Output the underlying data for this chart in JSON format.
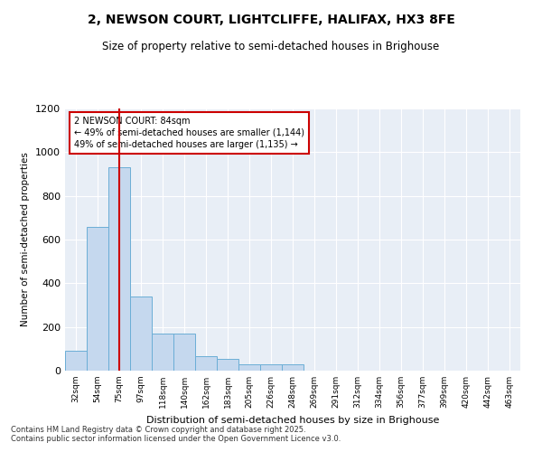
{
  "title_line1": "2, NEWSON COURT, LIGHTCLIFFE, HALIFAX, HX3 8FE",
  "title_line2": "Size of property relative to semi-detached houses in Brighouse",
  "xlabel": "Distribution of semi-detached houses by size in Brighouse",
  "ylabel": "Number of semi-detached properties",
  "annotation_title": "2 NEWSON COURT: 84sqm",
  "annotation_line2": "← 49% of semi-detached houses are smaller (1,144)",
  "annotation_line3": "49% of semi-detached houses are larger (1,135) →",
  "footer_line1": "Contains HM Land Registry data © Crown copyright and database right 2025.",
  "footer_line2": "Contains public sector information licensed under the Open Government Licence v3.0.",
  "categories": [
    "32sqm",
    "54sqm",
    "75sqm",
    "97sqm",
    "118sqm",
    "140sqm",
    "162sqm",
    "183sqm",
    "205sqm",
    "226sqm",
    "248sqm",
    "269sqm",
    "291sqm",
    "312sqm",
    "334sqm",
    "356sqm",
    "377sqm",
    "399sqm",
    "420sqm",
    "442sqm",
    "463sqm"
  ],
  "values": [
    90,
    660,
    930,
    340,
    170,
    170,
    65,
    55,
    30,
    30,
    30,
    0,
    0,
    0,
    0,
    0,
    0,
    0,
    0,
    0,
    0
  ],
  "bar_color": "#c5d8ee",
  "bar_edge_color": "#6baed6",
  "red_line_color": "#cc0000",
  "annotation_box_color": "#cc0000",
  "plot_bg_color": "#e8eef6",
  "ylim_max": 1200,
  "yticks": [
    0,
    200,
    400,
    600,
    800,
    1000,
    1200
  ],
  "red_line_index": 2
}
